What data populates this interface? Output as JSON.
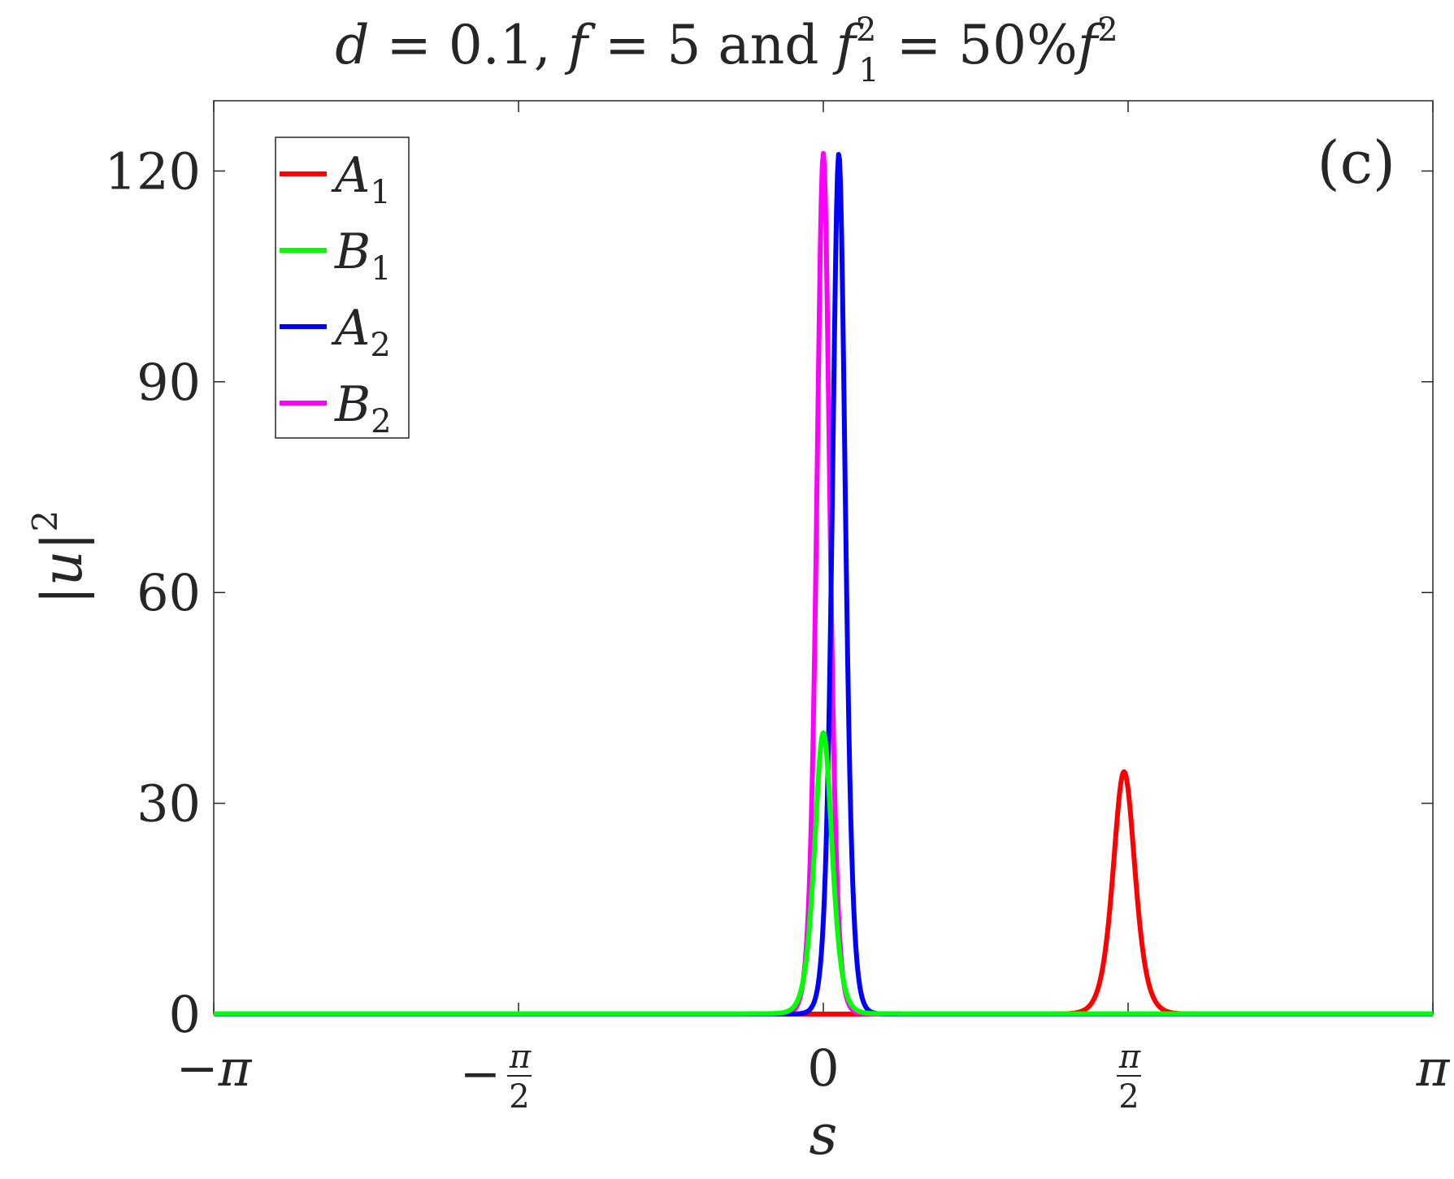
{
  "chart_data": {
    "type": "line",
    "title": {
      "d_var": "d",
      "d_val": "0.1",
      "f_var": "f",
      "f_val": "5",
      "and_word": "and",
      "f1_var": "f",
      "f1_sup": "2",
      "f1_sub": "1",
      "percent": "50%",
      "f2_var": "f",
      "f2_sup": "2"
    },
    "panel_label": "(c)",
    "xlabel": "s",
    "ylabel": {
      "base": "|u|",
      "sup": "2"
    },
    "xlim": [
      -3.14159,
      3.14159
    ],
    "ylim": [
      0,
      130
    ],
    "xticks": [
      {
        "value": -3.14159,
        "sign": "−",
        "num": "π",
        "den": ""
      },
      {
        "value": -1.5708,
        "sign": "−",
        "num": "π",
        "den": "2"
      },
      {
        "value": 0,
        "sign": "",
        "num": "0",
        "den": ""
      },
      {
        "value": 1.5708,
        "sign": "",
        "num": "π",
        "den": "2"
      },
      {
        "value": 3.14159,
        "sign": "",
        "num": "π",
        "den": ""
      }
    ],
    "yticks": [
      0,
      30,
      60,
      90,
      120
    ],
    "grid": false,
    "legend_position": "top-left",
    "series": [
      {
        "name": "A",
        "sub": "1",
        "color": "#ff0000",
        "center": 1.55,
        "peak": 34.5,
        "width": 0.075,
        "baseline": 0.0
      },
      {
        "name": "B",
        "sub": "1",
        "color": "#00ff00",
        "center": 0.0,
        "peak": 40.0,
        "width": 0.06,
        "baseline": 0.05
      },
      {
        "name": "A",
        "sub": "2",
        "color": "#0000ff",
        "center": 0.08,
        "peak": 122.5,
        "width": 0.045,
        "baseline": 0.0
      },
      {
        "name": "B",
        "sub": "2",
        "color": "#ff00ff",
        "center": 0.0,
        "peak": 122.5,
        "width": 0.045,
        "baseline": 0.0
      }
    ],
    "draw_order": [
      0,
      3,
      2,
      1
    ]
  }
}
